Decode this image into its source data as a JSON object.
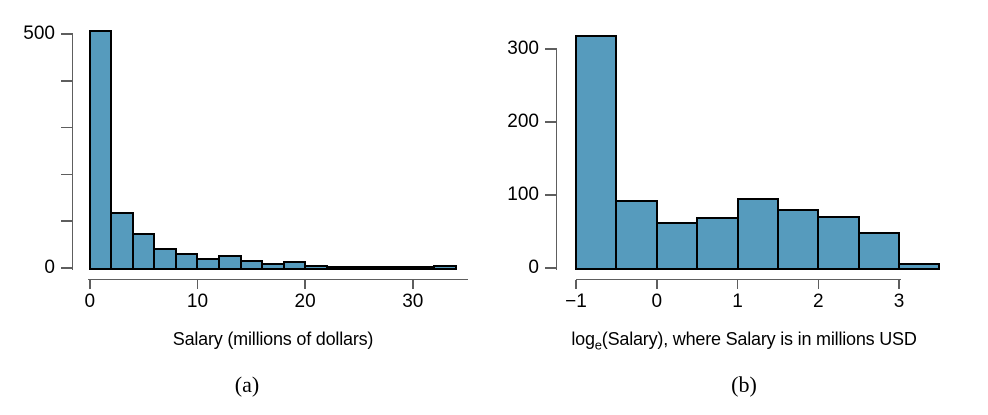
{
  "page": {
    "background": "#ffffff",
    "description": "Two side-by-side histograms of player salaries, raw and log-transformed"
  },
  "colors": {
    "bar_fill": "#569bbd",
    "bar_stroke": "#000000",
    "axis": "#5e5e5e",
    "text": "#000000"
  },
  "chart_data": [
    {
      "type": "bar",
      "subtype": "histogram",
      "title": "",
      "xlabel": "Salary (millions of dollars)",
      "ylabel": "",
      "caption": "(a)",
      "bin_start": 0,
      "bin_width": 2,
      "values": [
        505,
        115,
        70,
        38,
        28,
        18,
        24,
        12,
        7,
        11,
        2,
        1,
        1,
        1,
        1,
        1,
        2
      ],
      "xlim": [
        0,
        34
      ],
      "ylim": [
        0,
        505
      ],
      "grid": false,
      "legend": "none",
      "xticks": [
        {
          "v": 0,
          "label": "0"
        },
        {
          "v": 10,
          "label": "10"
        },
        {
          "v": 20,
          "label": "20"
        },
        {
          "v": 30,
          "label": "30"
        }
      ],
      "yticks": [
        {
          "v": 0,
          "label": "0"
        },
        {
          "v": 100,
          "label": ""
        },
        {
          "v": 200,
          "label": ""
        },
        {
          "v": 300,
          "label": ""
        },
        {
          "v": 400,
          "label": ""
        },
        {
          "v": 500,
          "label": "500"
        }
      ]
    },
    {
      "type": "bar",
      "subtype": "histogram",
      "title": "",
      "xlabel_prefix": "log",
      "xlabel_sub": "e",
      "xlabel_suffix": "(Salary), where Salary is in millions USD",
      "ylabel": "",
      "caption": "(b)",
      "bin_start": -1,
      "bin_width": 0.5,
      "values": [
        316,
        90,
        60,
        67,
        93,
        78,
        68,
        46,
        4
      ],
      "xlim": [
        -1,
        3.5
      ],
      "ylim": [
        0,
        316
      ],
      "grid": false,
      "legend": "none",
      "xticks": [
        {
          "v": -1,
          "label": "−1"
        },
        {
          "v": 0,
          "label": "0"
        },
        {
          "v": 1,
          "label": "1"
        },
        {
          "v": 2,
          "label": "2"
        },
        {
          "v": 3,
          "label": "3"
        }
      ],
      "yticks": [
        {
          "v": 0,
          "label": "0"
        },
        {
          "v": 100,
          "label": "100"
        },
        {
          "v": 200,
          "label": "200"
        },
        {
          "v": 300,
          "label": "300"
        }
      ]
    }
  ]
}
